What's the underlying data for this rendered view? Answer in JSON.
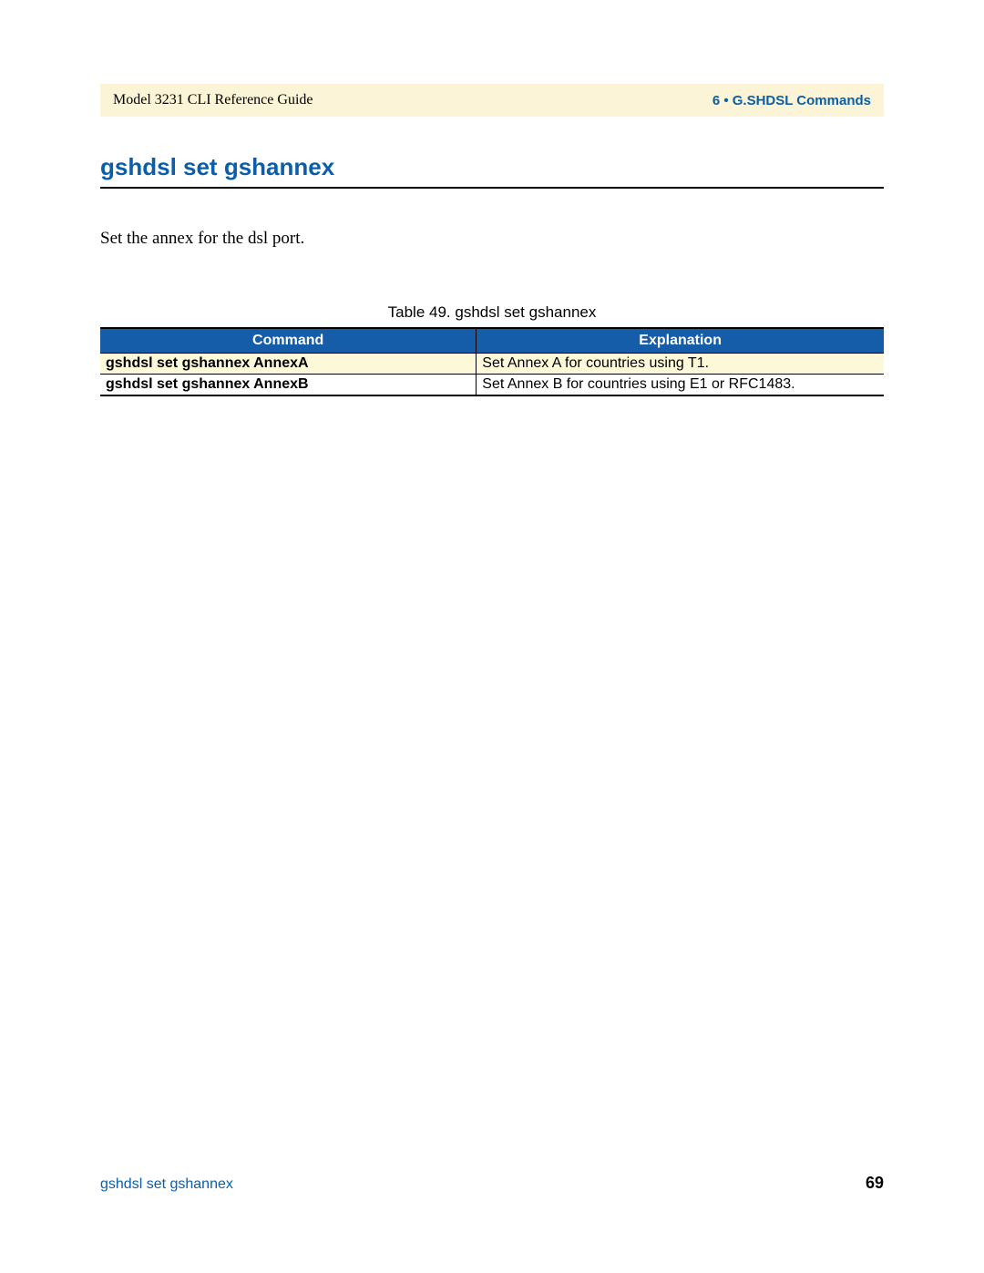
{
  "colors": {
    "page_bg": "#ffffff",
    "header_bg": "#fcf4d6",
    "accent_blue": "#0b5eab",
    "table_header_bg": "#165da9",
    "table_header_fg": "#ffffff",
    "table_highlight_bg": "#fdf9d8",
    "rule_color": "#000000",
    "body_text_color": "#000000"
  },
  "typography": {
    "serif_family": "Times New Roman",
    "sans_family": "Arial",
    "title_fontsize_pt": 20,
    "body_fontsize_pt": 14,
    "header_fontsize_pt": 12,
    "table_fontsize_pt": 12
  },
  "header": {
    "left": "Model 3231 CLI Reference Guide",
    "right": "6 • G.SHDSL Commands"
  },
  "section": {
    "title": "gshdsl set gshannex",
    "description": "Set the annex for the dsl port."
  },
  "table": {
    "type": "table",
    "caption": "Table 49. gshdsl set gshannex",
    "columns": [
      "Command",
      "Explanation"
    ],
    "column_widths_pct": [
      48,
      52
    ],
    "header_bg": "#165da9",
    "header_fg": "#ffffff",
    "border_color": "#000000",
    "rows": [
      {
        "command": "gshdsl set gshannex AnnexA",
        "explanation": "Set Annex A for countries using T1.",
        "highlight": true,
        "highlight_bg": "#fdf9d8"
      },
      {
        "command": "gshdsl set gshannex AnnexB",
        "explanation": "Set Annex B for countries using E1 or RFC1483.",
        "highlight": false
      }
    ]
  },
  "footer": {
    "left": "gshdsl set gshannex",
    "page_number": "69"
  }
}
